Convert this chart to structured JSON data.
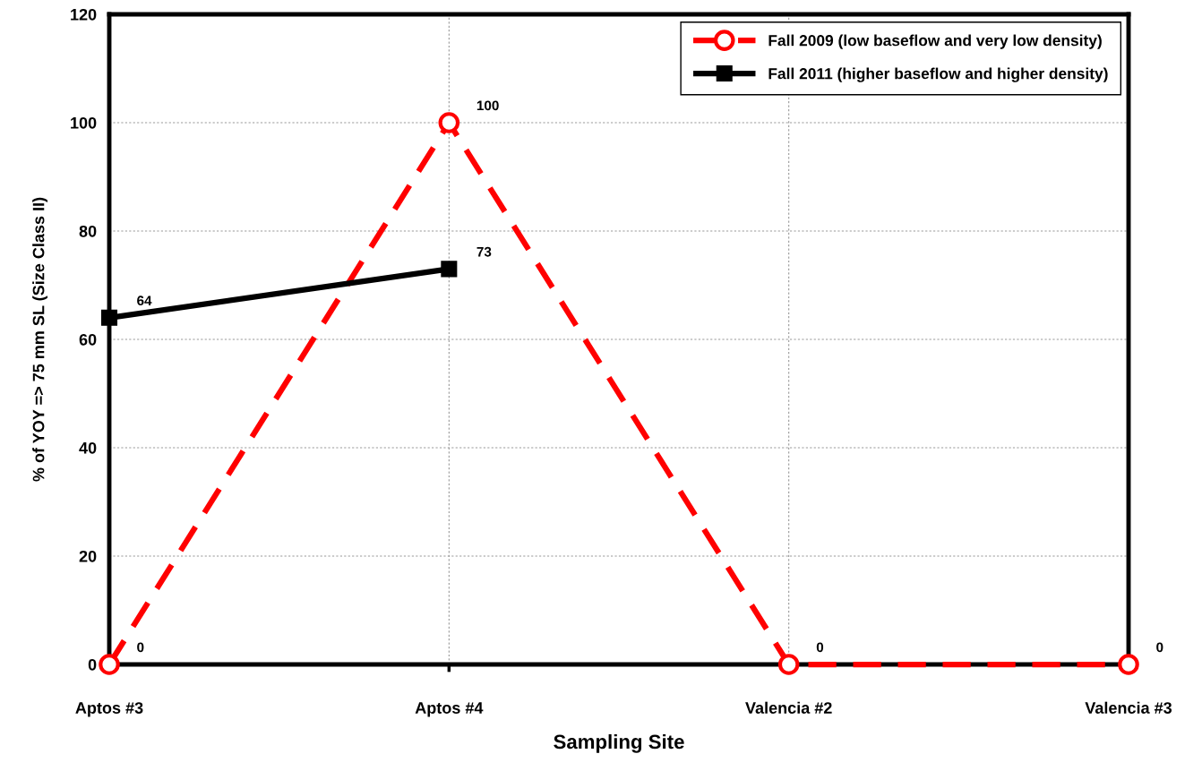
{
  "chart_data": {
    "type": "line",
    "xlabel": "Sampling Site",
    "ylabel": "% of YOY => 75 mm SL (Size Class II)",
    "categories": [
      "Aptos #3",
      "Aptos #4",
      "Valencia #2",
      "Valencia #3"
    ],
    "series": [
      {
        "name": "Fall 2009 (low baseflow and very low density)",
        "color": "#ff0000",
        "values": [
          0,
          100,
          0,
          0
        ],
        "marker": "circle",
        "line_style": "dashed"
      },
      {
        "name": "Fall 2011 (higher baseflow and higher density)",
        "color": "#000000",
        "values": [
          64,
          73,
          null,
          null
        ],
        "marker": "square",
        "line_style": "solid"
      }
    ],
    "ylim": [
      0,
      120
    ],
    "yticks": [
      0,
      20,
      40,
      60,
      80,
      100,
      120
    ],
    "grid": true,
    "legend": "top right",
    "data_labels": true
  }
}
